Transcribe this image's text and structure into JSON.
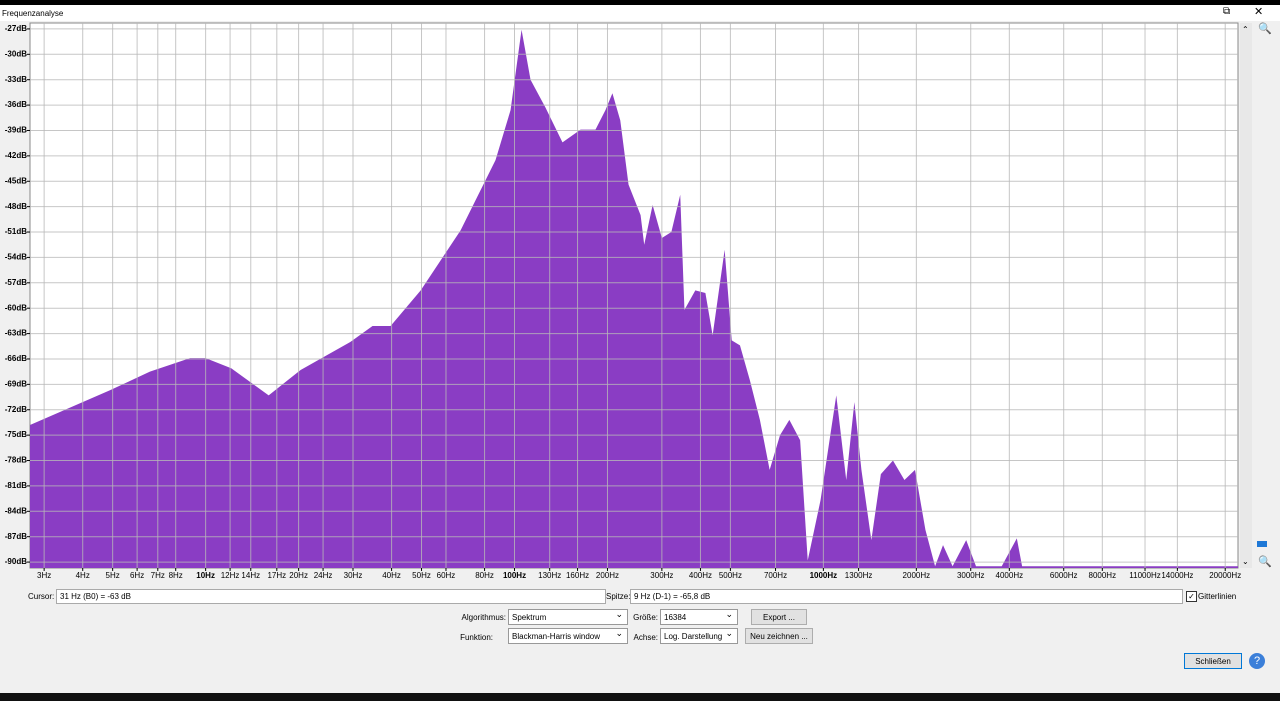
{
  "window": {
    "title": "Frequenzanalyse"
  },
  "chart_data": {
    "type": "area",
    "color": "#8a3dc4",
    "xscale": "log",
    "grid": true,
    "xlim": [
      2.7,
      22000
    ],
    "ylim": [
      -90.7,
      -26.3
    ],
    "x": [
      2.7,
      4.9,
      6.6,
      8.9,
      10,
      12.1,
      16,
      20.3,
      29.4,
      34.7,
      39.7,
      49.7,
      66.9,
      86.8,
      97.1,
      105.4,
      112.7,
      126,
      143,
      163.6,
      182.9,
      197,
      207.5,
      220,
      234,
      256,
      263,
      280,
      300,
      322,
      344,
      355,
      385,
      415,
      438,
      479,
      505,
      537,
      578,
      623,
      670,
      724,
      776,
      841,
      890,
      979,
      1101,
      1186,
      1260,
      1328,
      1430,
      1535,
      1680,
      1830,
      1980,
      2140,
      2300,
      2440,
      2620,
      2900,
      3120,
      3780,
      4230,
      4400,
      22000
    ],
    "values": [
      -73.8,
      -69.7,
      -67.5,
      -65.9,
      -65.9,
      -67.1,
      -70.3,
      -67.3,
      -64,
      -62.1,
      -62.1,
      -57.9,
      -50.8,
      -42.5,
      -36.6,
      -27.1,
      -33,
      -36.3,
      -40.4,
      -38.9,
      -38.9,
      -36.6,
      -34.6,
      -37.8,
      -45.4,
      -49,
      -52.5,
      -47.8,
      -51.7,
      -51,
      -46.6,
      -60.2,
      -57.9,
      -58.2,
      -63.2,
      -53.1,
      -63.8,
      -64.4,
      -68.5,
      -73.2,
      -79.1,
      -75,
      -73.2,
      -75.6,
      -89.8,
      -82.7,
      -70.3,
      -80.3,
      -71.1,
      -79.1,
      -87.4,
      -79.6,
      -78,
      -80.3,
      -79.1,
      -86.2,
      -90.5,
      -88,
      -90.5,
      -87.4,
      -90.5,
      -90.5,
      -87.2,
      -90.5,
      -90.5
    ],
    "xticks": [
      {
        "value": 3,
        "label": "3Hz"
      },
      {
        "value": 4,
        "label": "4Hz"
      },
      {
        "value": 5,
        "label": "5Hz"
      },
      {
        "value": 6,
        "label": "6Hz"
      },
      {
        "value": 7,
        "label": "7Hz"
      },
      {
        "value": 8,
        "label": "8Hz"
      },
      {
        "value": 10,
        "label": "10Hz"
      },
      {
        "value": 12,
        "label": "12Hz"
      },
      {
        "value": 14,
        "label": "14Hz"
      },
      {
        "value": 17,
        "label": "17Hz"
      },
      {
        "value": 20,
        "label": "20Hz"
      },
      {
        "value": 24,
        "label": "24Hz"
      },
      {
        "value": 30,
        "label": "30Hz"
      },
      {
        "value": 40,
        "label": "40Hz"
      },
      {
        "value": 50,
        "label": "50Hz"
      },
      {
        "value": 60,
        "label": "60Hz"
      },
      {
        "value": 80,
        "label": "80Hz"
      },
      {
        "value": 100,
        "label": "100Hz"
      },
      {
        "value": 130,
        "label": "130Hz"
      },
      {
        "value": 160,
        "label": "160Hz"
      },
      {
        "value": 200,
        "label": "200Hz"
      },
      {
        "value": 300,
        "label": "300Hz"
      },
      {
        "value": 400,
        "label": "400Hz"
      },
      {
        "value": 500,
        "label": "500Hz"
      },
      {
        "value": 700,
        "label": "700Hz"
      },
      {
        "value": 1000,
        "label": "1000Hz"
      },
      {
        "value": 1300,
        "label": "1300Hz"
      },
      {
        "value": 2000,
        "label": "2000Hz"
      },
      {
        "value": 3000,
        "label": "3000Hz"
      },
      {
        "value": 4000,
        "label": "4000Hz"
      },
      {
        "value": 6000,
        "label": "6000Hz"
      },
      {
        "value": 8000,
        "label": "8000Hz"
      },
      {
        "value": 11000,
        "label": "11000Hz"
      },
      {
        "value": 14000,
        "label": "14000Hz"
      },
      {
        "value": 20000,
        "label": "20000Hz"
      }
    ],
    "yticks": [
      {
        "value": -27,
        "label": "-27dB"
      },
      {
        "value": -30,
        "label": "-30dB"
      },
      {
        "value": -33,
        "label": "-33dB"
      },
      {
        "value": -36,
        "label": "-36dB"
      },
      {
        "value": -39,
        "label": "-39dB"
      },
      {
        "value": -42,
        "label": "-42dB"
      },
      {
        "value": -45,
        "label": "-45dB"
      },
      {
        "value": -48,
        "label": "-48dB"
      },
      {
        "value": -51,
        "label": "-51dB"
      },
      {
        "value": -54,
        "label": "-54dB"
      },
      {
        "value": -57,
        "label": "-57dB"
      },
      {
        "value": -60,
        "label": "-60dB"
      },
      {
        "value": -63,
        "label": "-63dB"
      },
      {
        "value": -66,
        "label": "-66dB"
      },
      {
        "value": -69,
        "label": "-69dB"
      },
      {
        "value": -72,
        "label": "-72dB"
      },
      {
        "value": -75,
        "label": "-75dB"
      },
      {
        "value": -78,
        "label": "-78dB"
      },
      {
        "value": -81,
        "label": "-81dB"
      },
      {
        "value": -84,
        "label": "-84dB"
      },
      {
        "value": -87,
        "label": "-87dB"
      },
      {
        "value": -90,
        "label": "-90dB"
      }
    ]
  },
  "controls": {
    "cursor_label": "Cursor:",
    "cursor_value": "31 Hz (B0) = -63 dB",
    "peak_label": "Spitze:",
    "peak_value": "9 Hz (D-1) = -65,8 dB",
    "grid_checkbox": "Gitterlinien",
    "algorithm_label": "Algorithmus:",
    "algorithm": "Spektrum",
    "size_label": "Größe:",
    "size": "16384",
    "export": "Export ...",
    "function_label": "Funktion:",
    "function": "Blackman-Harris window",
    "axis_label": "Achse:",
    "axis": "Log. Darstellung",
    "redraw": "Neu zeichnen ...",
    "close": "Schließen"
  }
}
